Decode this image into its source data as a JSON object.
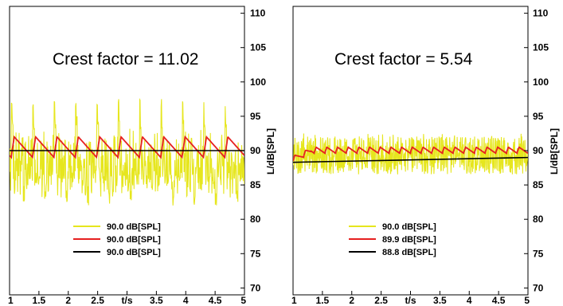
{
  "chart_data": [
    {
      "type": "line",
      "annotation": "Crest factor = 11.02",
      "xlabel": "t/s",
      "ylabel": "L/dB[SPL]",
      "xlim": [
        1,
        5
      ],
      "ylim": [
        69,
        111
      ],
      "x_ticks": [
        "1",
        "1.5",
        "2",
        "2.5",
        "t/s",
        "3.5",
        "4",
        "4.5",
        "5"
      ],
      "y_ticks": [
        "70",
        "75",
        "80",
        "85",
        "90",
        "95",
        "100",
        "105",
        "110"
      ],
      "legend_position": "bottom-center",
      "series": [
        {
          "name": "90.0 dB[SPL]",
          "color": "#e6e61e",
          "description": "periodic impulsive signal, peaks near 97.5 dB, troughs near 82 dB, about 11 cycles"
        },
        {
          "name": "90.0 dB[SPL]",
          "color": "#e62020",
          "description": "sawtooth-like level oscillating between about 89 and 92 dB"
        },
        {
          "name": "90.0 dB[SPL]",
          "color": "#000000",
          "values": [
            90,
            90
          ]
        }
      ]
    },
    {
      "type": "line",
      "annotation": "Crest factor = 5.54",
      "xlabel": "t/s",
      "ylabel": "L/dB[SPL]",
      "xlim": [
        1,
        5
      ],
      "ylim": [
        69,
        111
      ],
      "x_ticks": [
        "1",
        "1.5",
        "2",
        "2.5",
        "t/s",
        "3.5",
        "4",
        "4.5",
        "5"
      ],
      "y_ticks": [
        "70",
        "75",
        "80",
        "85",
        "90",
        "95",
        "100",
        "105",
        "110"
      ],
      "legend_position": "bottom-center",
      "series": [
        {
          "name": "90.0 dB[SPL]",
          "color": "#e6e61e",
          "description": "dense noise-like signal between about 86 and 92 dB"
        },
        {
          "name": "89.9 dB[SPL]",
          "color": "#e62020",
          "description": "rises from 88.5 to about 90 dB and oscillates slightly"
        },
        {
          "name": "88.8 dB[SPL]",
          "color": "#000000",
          "values": [
            88.3,
            89.0
          ]
        }
      ]
    }
  ]
}
